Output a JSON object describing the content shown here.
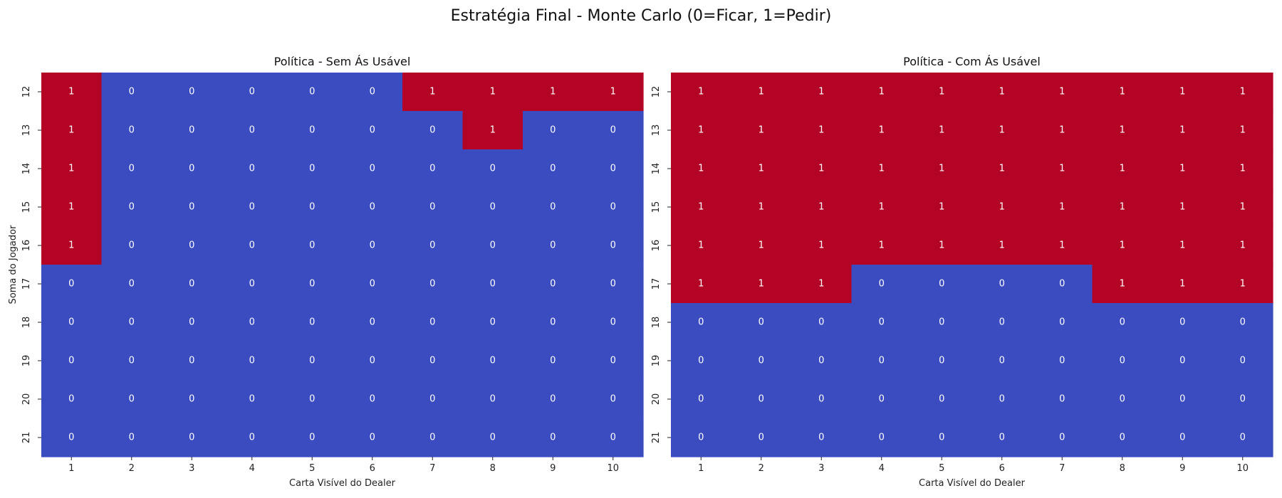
{
  "figure_title": "Estratégia Final - Monte Carlo (0=Ficar, 1=Pedir)",
  "colors": {
    "value_0": "#3b4cc0",
    "value_1": "#b40426",
    "annotation_text": "#ffffff",
    "axis_text": "#222222"
  },
  "chart_data": [
    {
      "type": "heatmap",
      "title": "Política - Sem Ás Usável",
      "xlabel": "Carta Visível do Dealer",
      "ylabel": "Soma do Jogador",
      "x_categories": [
        "1",
        "2",
        "3",
        "4",
        "5",
        "6",
        "7",
        "8",
        "9",
        "10"
      ],
      "y_categories": [
        "12",
        "13",
        "14",
        "15",
        "16",
        "17",
        "18",
        "19",
        "20",
        "21"
      ],
      "values": [
        [
          1,
          0,
          0,
          0,
          0,
          0,
          1,
          1,
          1,
          1
        ],
        [
          1,
          0,
          0,
          0,
          0,
          0,
          0,
          1,
          0,
          0
        ],
        [
          1,
          0,
          0,
          0,
          0,
          0,
          0,
          0,
          0,
          0
        ],
        [
          1,
          0,
          0,
          0,
          0,
          0,
          0,
          0,
          0,
          0
        ],
        [
          1,
          0,
          0,
          0,
          0,
          0,
          0,
          0,
          0,
          0
        ],
        [
          0,
          0,
          0,
          0,
          0,
          0,
          0,
          0,
          0,
          0
        ],
        [
          0,
          0,
          0,
          0,
          0,
          0,
          0,
          0,
          0,
          0
        ],
        [
          0,
          0,
          0,
          0,
          0,
          0,
          0,
          0,
          0,
          0
        ],
        [
          0,
          0,
          0,
          0,
          0,
          0,
          0,
          0,
          0,
          0
        ],
        [
          0,
          0,
          0,
          0,
          0,
          0,
          0,
          0,
          0,
          0
        ]
      ],
      "annotated": true,
      "colorbar": false
    },
    {
      "type": "heatmap",
      "title": "Política - Com Ás Usável",
      "xlabel": "Carta Visível do Dealer",
      "ylabel": "",
      "x_categories": [
        "1",
        "2",
        "3",
        "4",
        "5",
        "6",
        "7",
        "8",
        "9",
        "10"
      ],
      "y_categories": [
        "12",
        "13",
        "14",
        "15",
        "16",
        "17",
        "18",
        "19",
        "20",
        "21"
      ],
      "values": [
        [
          1,
          1,
          1,
          1,
          1,
          1,
          1,
          1,
          1,
          1
        ],
        [
          1,
          1,
          1,
          1,
          1,
          1,
          1,
          1,
          1,
          1
        ],
        [
          1,
          1,
          1,
          1,
          1,
          1,
          1,
          1,
          1,
          1
        ],
        [
          1,
          1,
          1,
          1,
          1,
          1,
          1,
          1,
          1,
          1
        ],
        [
          1,
          1,
          1,
          1,
          1,
          1,
          1,
          1,
          1,
          1
        ],
        [
          1,
          1,
          1,
          0,
          0,
          0,
          0,
          1,
          1,
          1
        ],
        [
          0,
          0,
          0,
          0,
          0,
          0,
          0,
          0,
          0,
          0
        ],
        [
          0,
          0,
          0,
          0,
          0,
          0,
          0,
          0,
          0,
          0
        ],
        [
          0,
          0,
          0,
          0,
          0,
          0,
          0,
          0,
          0,
          0
        ],
        [
          0,
          0,
          0,
          0,
          0,
          0,
          0,
          0,
          0,
          0
        ]
      ],
      "annotated": true,
      "colorbar": false
    }
  ]
}
